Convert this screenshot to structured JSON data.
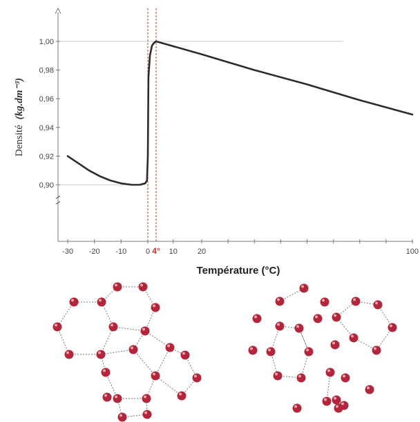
{
  "chart_data": {
    "type": "line",
    "title": "",
    "xlabel": "Température (°C)",
    "ylabel": "Densité",
    "ylabel_unit": "(kg.dm⁻³)",
    "xlim": [
      -30,
      100
    ],
    "ylim": [
      0.89,
      1.01
    ],
    "x_ticks": [
      {
        "value": -30,
        "label": "-30"
      },
      {
        "value": -20,
        "label": "-20"
      },
      {
        "value": -10,
        "label": "-10"
      },
      {
        "value": 0,
        "label": "0"
      },
      {
        "value": 4,
        "label": "4°"
      },
      {
        "value": 10,
        "label": "10"
      },
      {
        "value": 20,
        "label": "20"
      },
      {
        "value": 100,
        "label": "100"
      }
    ],
    "y_ticks": [
      {
        "value": 0.9,
        "label": "0,90"
      },
      {
        "value": 0.92,
        "label": "0,92"
      },
      {
        "value": 0.94,
        "label": "0,94"
      },
      {
        "value": 0.96,
        "label": "0,96"
      },
      {
        "value": 0.98,
        "label": "0,98"
      },
      {
        "value": 1.0,
        "label": "1,00"
      }
    ],
    "reference_lines_y": [
      1.0,
      0.9
    ],
    "marker_lines_x": [
      0,
      4
    ],
    "axis_break": "y",
    "series": [
      {
        "color": "#2b2b2b",
        "x": [
          -30,
          -26,
          -22,
          -18,
          -14,
          -10,
          -6,
          -3,
          -1,
          -0.3,
          0,
          0.3,
          1,
          2,
          3,
          4,
          20,
          40,
          60,
          80,
          100
        ],
        "y": [
          0.92,
          0.915,
          0.91,
          0.906,
          0.903,
          0.901,
          0.9,
          0.9,
          0.901,
          0.903,
          0.92,
          0.975,
          0.99,
          0.997,
          0.999,
          1.0,
          0.991,
          0.98,
          0.97,
          0.959,
          0.949
        ]
      }
    ]
  },
  "illustration": {
    "left_name": "ice-structure",
    "right_name": "liquid-water-structure",
    "molecule_color": "#b3253a"
  }
}
